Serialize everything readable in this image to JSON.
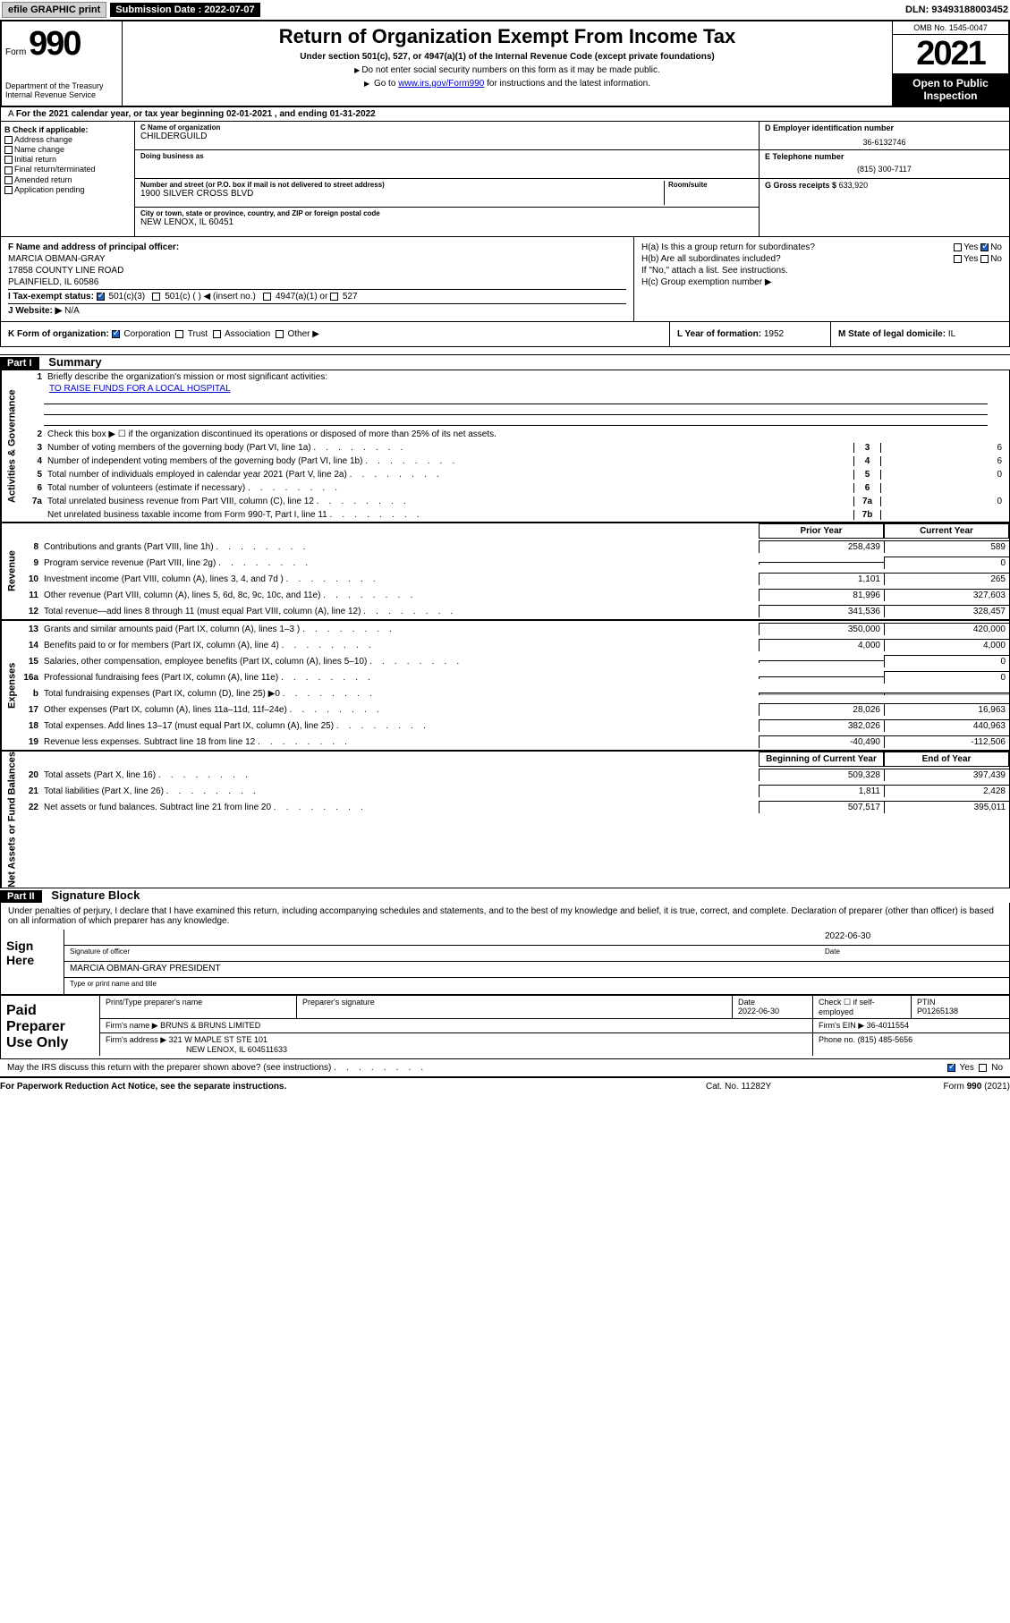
{
  "topbar": {
    "efile": "efile GRAPHIC print",
    "sub_label": "Submission Date : 2022-07-07",
    "dln": "DLN: 93493188003452"
  },
  "header": {
    "form_word": "Form",
    "form_num": "990",
    "dept": "Department of the Treasury\nInternal Revenue Service",
    "title": "Return of Organization Exempt From Income Tax",
    "subtitle": "Under section 501(c), 527, or 4947(a)(1) of the Internal Revenue Code (except private foundations)",
    "note1": "Do not enter social security numbers on this form as it may be made public.",
    "note2_pre": "Go to ",
    "note2_link": "www.irs.gov/Form990",
    "note2_post": " for instructions and the latest information.",
    "omb": "OMB No. 1545-0047",
    "year": "2021",
    "inspect": "Open to Public Inspection"
  },
  "line_a": "For the 2021 calendar year, or tax year beginning 02-01-2021  , and ending 01-31-2022",
  "box_b": {
    "title": "B Check if applicable:",
    "opts": [
      "Address change",
      "Name change",
      "Initial return",
      "Final return/terminated",
      "Amended return",
      "Application pending"
    ]
  },
  "box_c": {
    "name_lbl": "C Name of organization",
    "name": "CHILDERGUILD",
    "dba_lbl": "Doing business as",
    "addr_lbl": "Number and street (or P.O. box if mail is not delivered to street address)",
    "room_lbl": "Room/suite",
    "addr": "1900 SILVER CROSS BLVD",
    "city_lbl": "City or town, state or province, country, and ZIP or foreign postal code",
    "city": "NEW LENOX, IL  60451"
  },
  "box_d": {
    "ein_lbl": "D Employer identification number",
    "ein": "36-6132746",
    "tel_lbl": "E Telephone number",
    "tel": "(815) 300-7117",
    "gross_lbl": "G Gross receipts $",
    "gross": "633,920"
  },
  "box_f": {
    "lbl": "F Name and address of principal officer:",
    "name": "MARCIA OBMAN-GRAY",
    "addr1": "17858 COUNTY LINE ROAD",
    "addr2": "PLAINFIELD, IL  60586"
  },
  "box_h": {
    "ha": "H(a)  Is this a group return for subordinates?",
    "ha_ans": "No",
    "hb": "H(b)  Are all subordinates included?",
    "hb_note": "If \"No,\" attach a list. See instructions.",
    "hc": "H(c)  Group exemption number ▶"
  },
  "box_i": {
    "lbl": "I   Tax-exempt status:",
    "o1": "501(c)(3)",
    "o2": "501(c) (  ) ◀ (insert no.)",
    "o3": "4947(a)(1) or",
    "o4": "527"
  },
  "box_j": {
    "lbl": "J   Website: ▶",
    "val": "N/A"
  },
  "box_k": {
    "lbl": "K Form of organization:",
    "opts": [
      "Corporation",
      "Trust",
      "Association",
      "Other ▶"
    ]
  },
  "box_l": {
    "lbl": "L Year of formation:",
    "val": "1952"
  },
  "box_m": {
    "lbl": "M State of legal domicile:",
    "val": "IL"
  },
  "part1": {
    "hdr": "Part I",
    "title": "Summary"
  },
  "sideLabels": [
    "Activities & Governance",
    "Revenue",
    "Expenses",
    "Net Assets or Fund Balances"
  ],
  "gov": {
    "l1": "Briefly describe the organization's mission or most significant activities:",
    "mission": "TO RAISE FUNDS FOR A LOCAL HOSPITAL",
    "l2": "Check this box ▶ ☐  if the organization discontinued its operations or disposed of more than 25% of its net assets.",
    "l3": "Number of voting members of the governing body (Part VI, line 1a)",
    "l4": "Number of independent voting members of the governing body (Part VI, line 1b)",
    "l5": "Total number of individuals employed in calendar year 2021 (Part V, line 2a)",
    "l6": "Total number of volunteers (estimate if necessary)",
    "l7a": "Total unrelated business revenue from Part VIII, column (C), line 12",
    "l7b": "Net unrelated business taxable income from Form 990-T, Part I, line 11",
    "v3": "6",
    "v4": "6",
    "v5": "0",
    "v6": "",
    "v7a": "0",
    "v7b": ""
  },
  "colhdr": {
    "prior": "Prior Year",
    "current": "Current Year",
    "boy": "Beginning of Current Year",
    "eoy": "End of Year"
  },
  "rev": [
    {
      "n": "8",
      "t": "Contributions and grants (Part VIII, line 1h)",
      "p": "258,439",
      "c": "589"
    },
    {
      "n": "9",
      "t": "Program service revenue (Part VIII, line 2g)",
      "p": "",
      "c": "0"
    },
    {
      "n": "10",
      "t": "Investment income (Part VIII, column (A), lines 3, 4, and 7d )",
      "p": "1,101",
      "c": "265"
    },
    {
      "n": "11",
      "t": "Other revenue (Part VIII, column (A), lines 5, 6d, 8c, 9c, 10c, and 11e)",
      "p": "81,996",
      "c": "327,603"
    },
    {
      "n": "12",
      "t": "Total revenue—add lines 8 through 11 (must equal Part VIII, column (A), line 12)",
      "p": "341,536",
      "c": "328,457"
    }
  ],
  "exp": [
    {
      "n": "13",
      "t": "Grants and similar amounts paid (Part IX, column (A), lines 1–3 )",
      "p": "350,000",
      "c": "420,000"
    },
    {
      "n": "14",
      "t": "Benefits paid to or for members (Part IX, column (A), line 4)",
      "p": "4,000",
      "c": "4,000"
    },
    {
      "n": "15",
      "t": "Salaries, other compensation, employee benefits (Part IX, column (A), lines 5–10)",
      "p": "",
      "c": "0"
    },
    {
      "n": "16a",
      "t": "Professional fundraising fees (Part IX, column (A), line 11e)",
      "p": "",
      "c": "0"
    },
    {
      "n": "b",
      "t": "Total fundraising expenses (Part IX, column (D), line 25) ▶0",
      "p": "",
      "c": "",
      "shade": true
    },
    {
      "n": "17",
      "t": "Other expenses (Part IX, column (A), lines 11a–11d, 11f–24e)",
      "p": "28,026",
      "c": "16,963"
    },
    {
      "n": "18",
      "t": "Total expenses. Add lines 13–17 (must equal Part IX, column (A), line 25)",
      "p": "382,026",
      "c": "440,963"
    },
    {
      "n": "19",
      "t": "Revenue less expenses. Subtract line 18 from line 12",
      "p": "-40,490",
      "c": "-112,506"
    }
  ],
  "net": [
    {
      "n": "20",
      "t": "Total assets (Part X, line 16)",
      "p": "509,328",
      "c": "397,439"
    },
    {
      "n": "21",
      "t": "Total liabilities (Part X, line 26)",
      "p": "1,811",
      "c": "2,428"
    },
    {
      "n": "22",
      "t": "Net assets or fund balances. Subtract line 21 from line 20",
      "p": "507,517",
      "c": "395,011"
    }
  ],
  "part2": {
    "hdr": "Part II",
    "title": "Signature Block"
  },
  "sig": {
    "decl": "Under penalties of perjury, I declare that I have examined this return, including accompanying schedules and statements, and to the best of my knowledge and belief, it is true, correct, and complete. Declaration of preparer (other than officer) is based on all information of which preparer has any knowledge.",
    "sign_here": "Sign Here",
    "date": "2022-06-30",
    "sig_lbl": "Signature of officer",
    "date_lbl": "Date",
    "name": "MARCIA OBMAN-GRAY PRESIDENT",
    "name_lbl": "Type or print name and title"
  },
  "paid": {
    "title": "Paid Preparer Use Only",
    "h1": "Print/Type preparer's name",
    "h2": "Preparer's signature",
    "h3": "Date",
    "h3v": "2022-06-30",
    "h4": "Check ☐ if self-employed",
    "h5": "PTIN",
    "h5v": "P01265138",
    "firm_lbl": "Firm's name   ▶",
    "firm": "BRUNS & BRUNS LIMITED",
    "ein_lbl": "Firm's EIN ▶",
    "ein": "36-4011554",
    "addr_lbl": "Firm's address ▶",
    "addr1": "321 W MAPLE ST STE 101",
    "addr2": "NEW LENOX, IL  604511633",
    "phone_lbl": "Phone no.",
    "phone": "(815) 485-5656",
    "discuss": "May the IRS discuss this return with the preparer shown above? (see instructions)",
    "discuss_ans": "Yes"
  },
  "footer": {
    "l": "For Paperwork Reduction Act Notice, see the separate instructions.",
    "m": "Cat. No. 11282Y",
    "r": "Form 990 (2021)"
  }
}
